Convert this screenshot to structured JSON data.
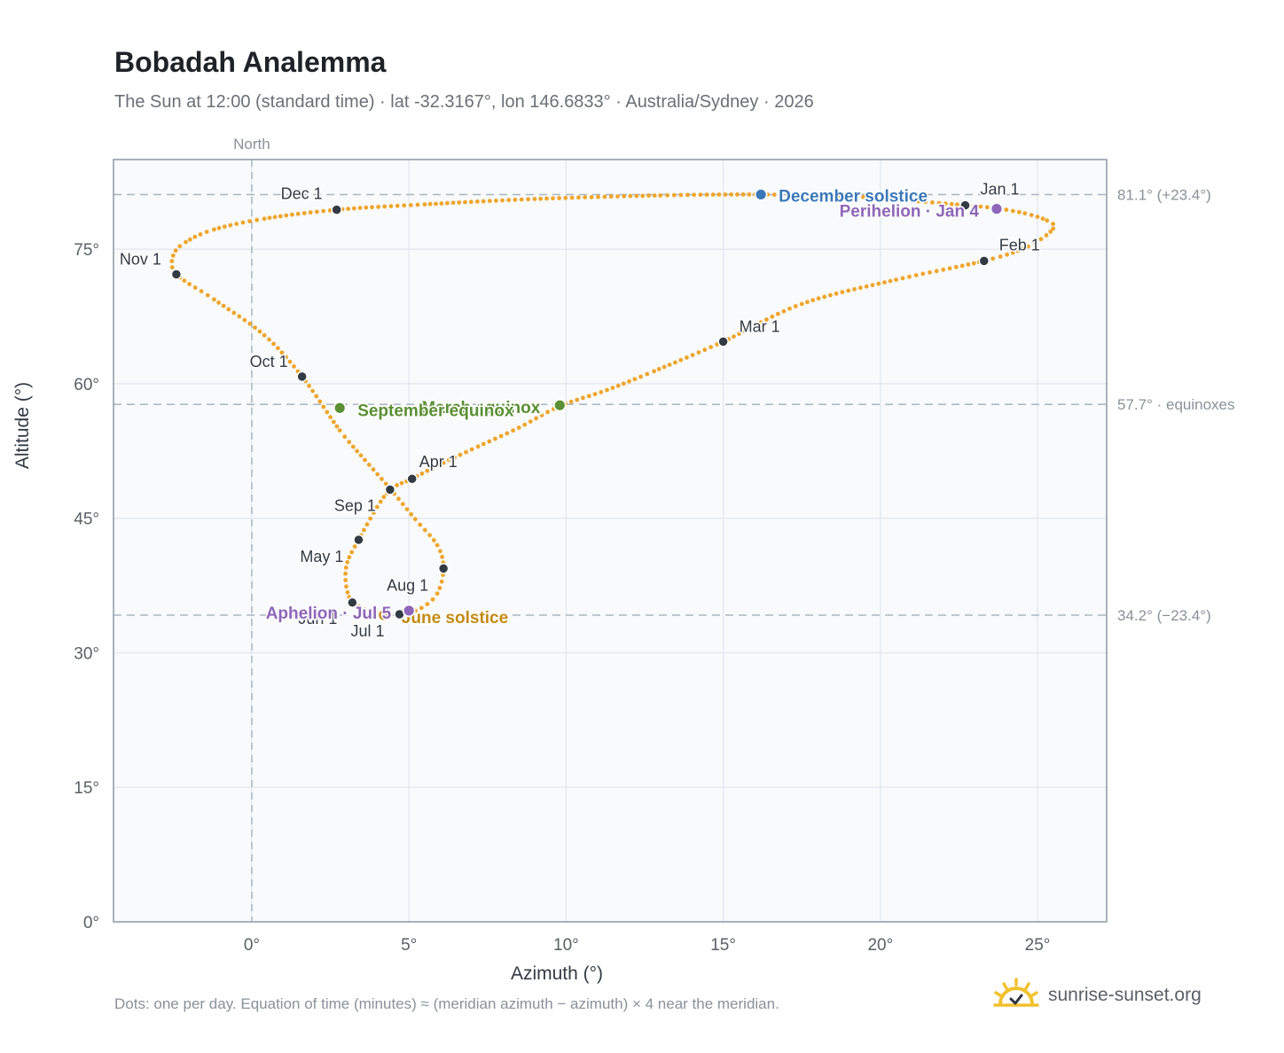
{
  "header": {
    "title": "Bobadah Analemma",
    "subtitle": "The Sun at 12:00 (standard time) · lat -32.3167°, lon 146.6833° · Australia/Sydney · 2026"
  },
  "footer": {
    "note": "Dots: one per day. Equation of time (minutes) ≈ (meridian azimuth − azimuth) × 4 near the meridian.",
    "brand": "sunrise-sunset.org"
  },
  "colors": {
    "path": "#f0a52a",
    "month_marker": "#333a44",
    "equinox": "#5a8f33",
    "december_solstice": "#3a78b8",
    "june_solstice": "#c48a14",
    "apsides": "#8e66b8",
    "grid": "#e3e8ee",
    "reference_line": "#aab6c0",
    "plot_bg": "#f8fafc",
    "plot_border": "#8e99a6"
  },
  "chart_data": {
    "type": "scatter",
    "xlabel": "Azimuth (°)",
    "ylabel": "Altitude (°)",
    "xlim": [
      -4.4,
      27.2
    ],
    "ylim": [
      0,
      85
    ],
    "x_ticks": [
      {
        "v": 0,
        "label": "0°"
      },
      {
        "v": 5,
        "label": "5°"
      },
      {
        "v": 10,
        "label": "10°"
      },
      {
        "v": 15,
        "label": "15°"
      },
      {
        "v": 20,
        "label": "20°"
      },
      {
        "v": 25,
        "label": "25°"
      }
    ],
    "y_ticks": [
      {
        "v": 0,
        "label": "0°"
      },
      {
        "v": 15,
        "label": "15°"
      },
      {
        "v": 30,
        "label": "30°"
      },
      {
        "v": 45,
        "label": "45°"
      },
      {
        "v": 60,
        "label": "60°"
      },
      {
        "v": 75,
        "label": "75°"
      }
    ],
    "grid": true,
    "vertical_reference": {
      "x": 0,
      "label": "North"
    },
    "reference_lines": [
      {
        "y": 81.1,
        "label": "81.1° (+23.4°)"
      },
      {
        "y": 57.7,
        "label": "57.7° · equinoxes"
      },
      {
        "y": 34.2,
        "label": "34.2° (−23.4°)"
      }
    ],
    "path": [
      [
        22.7,
        79.9
      ],
      [
        23.6,
        79.6
      ],
      [
        24.6,
        79.0
      ],
      [
        25.3,
        78.2
      ],
      [
        25.5,
        77.3
      ],
      [
        24.7,
        75.3
      ],
      [
        23.3,
        73.7
      ],
      [
        20.5,
        71.6
      ],
      [
        17.5,
        68.9
      ],
      [
        15.0,
        64.7
      ],
      [
        12.8,
        61.4
      ],
      [
        11.3,
        59.3
      ],
      [
        9.8,
        57.5
      ],
      [
        8.5,
        55.1
      ],
      [
        7.2,
        53.0
      ],
      [
        6.1,
        51.2
      ],
      [
        5.1,
        49.4
      ],
      [
        4.3,
        47.8
      ],
      [
        3.4,
        42.6
      ],
      [
        3.0,
        39.5
      ],
      [
        3.1,
        36.2
      ],
      [
        3.6,
        34.8
      ],
      [
        4.2,
        34.2
      ],
      [
        4.8,
        34.3
      ],
      [
        5.4,
        35.0
      ],
      [
        5.9,
        36.6
      ],
      [
        6.1,
        39.4
      ],
      [
        5.9,
        42.0
      ],
      [
        5.2,
        44.9
      ],
      [
        4.4,
        48.3
      ],
      [
        3.6,
        51.5
      ],
      [
        2.8,
        54.8
      ],
      [
        1.6,
        60.8
      ],
      [
        0.4,
        65.4
      ],
      [
        -1.2,
        69.4
      ],
      [
        -2.4,
        72.2
      ],
      [
        -2.5,
        74.3
      ],
      [
        -2.1,
        75.8
      ],
      [
        -1.2,
        77.2
      ],
      [
        0.4,
        78.4
      ],
      [
        2.7,
        79.4
      ],
      [
        5.5,
        80.0
      ],
      [
        9.0,
        80.6
      ],
      [
        13.0,
        81.0
      ],
      [
        16.2,
        81.1
      ],
      [
        19.0,
        80.9
      ],
      [
        21.0,
        80.4
      ],
      [
        22.7,
        79.9
      ]
    ],
    "month_markers": [
      {
        "label": "Jan 1",
        "x": 22.7,
        "y": 79.9
      },
      {
        "label": "Feb 1",
        "x": 23.3,
        "y": 73.7
      },
      {
        "label": "Mar 1",
        "x": 15.0,
        "y": 64.7
      },
      {
        "label": "Apr 1",
        "x": 5.1,
        "y": 49.4
      },
      {
        "label": "May 1",
        "x": 3.4,
        "y": 42.6
      },
      {
        "label": "Jun 1",
        "x": 3.2,
        "y": 35.6
      },
      {
        "label": "Jul 1",
        "x": 4.7,
        "y": 34.3
      },
      {
        "label": "Aug 1",
        "x": 6.1,
        "y": 39.4
      },
      {
        "label": "Sep 1",
        "x": 4.4,
        "y": 48.2
      },
      {
        "label": "Oct 1",
        "x": 1.6,
        "y": 60.8
      },
      {
        "label": "Nov 1",
        "x": -2.4,
        "y": 72.2
      },
      {
        "label": "Dec 1",
        "x": 2.7,
        "y": 79.4
      }
    ],
    "events": [
      {
        "label": "December solstice",
        "x": 16.2,
        "y": 81.1,
        "color_key": "december_solstice"
      },
      {
        "label": "Perihelion · Jan 4",
        "x": 23.7,
        "y": 79.5,
        "color_key": "apsides"
      },
      {
        "label": "March equinox",
        "x": 9.8,
        "y": 57.6,
        "color_key": "equinox"
      },
      {
        "label": "September equinox",
        "x": 2.8,
        "y": 57.3,
        "color_key": "equinox"
      },
      {
        "label": "June solstice",
        "x": 4.2,
        "y": 34.2,
        "color_key": "june_solstice"
      },
      {
        "label": "Aphelion · Jul 5",
        "x": 5.0,
        "y": 34.7,
        "color_key": "apsides"
      }
    ]
  }
}
